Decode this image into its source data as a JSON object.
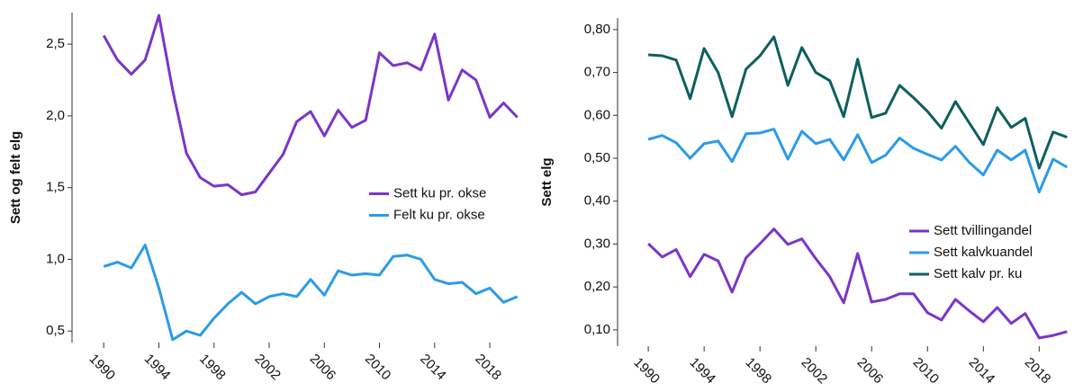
{
  "chart_data": [
    {
      "type": "line",
      "ylabel": "Sett og felt elg",
      "legend": "center right",
      "x": [
        1990,
        1991,
        1992,
        1993,
        1994,
        1995,
        1996,
        1997,
        1998,
        1999,
        2000,
        2001,
        2002,
        2003,
        2004,
        2005,
        2006,
        2007,
        2008,
        2009,
        2010,
        2011,
        2012,
        2013,
        2014,
        2015,
        2016,
        2017,
        2018,
        2019,
        2020
      ],
      "xlim": [
        1987.7,
        2021
      ],
      "xticks": [
        1990,
        1994,
        1998,
        2002,
        2006,
        2010,
        2014,
        2018
      ],
      "ylim": [
        0.42,
        2.72
      ],
      "yticks": [
        {
          "value": 0.5,
          "label": "0,5"
        },
        {
          "value": 1.0,
          "label": "1,0"
        },
        {
          "value": 1.5,
          "label": "1,5"
        },
        {
          "value": 2.0,
          "label": "2,0"
        },
        {
          "value": 2.5,
          "label": "2,5"
        }
      ],
      "series": [
        {
          "name": "Sett ku pr. okse",
          "color": "#7b35c9",
          "values": [
            2.56,
            2.39,
            2.29,
            2.39,
            2.7,
            2.18,
            1.74,
            1.57,
            1.51,
            1.52,
            1.45,
            1.47,
            1.6,
            1.73,
            1.96,
            2.03,
            1.86,
            2.04,
            1.92,
            1.97,
            2.44,
            2.35,
            2.37,
            2.32,
            2.57,
            2.11,
            2.32,
            2.25,
            1.99,
            2.09,
            1.99
          ]
        },
        {
          "name": "Felt ku pr. okse",
          "color": "#2b9be8",
          "values": [
            0.95,
            0.98,
            0.94,
            1.1,
            0.8,
            0.44,
            0.5,
            0.47,
            0.59,
            0.69,
            0.77,
            0.69,
            0.74,
            0.76,
            0.74,
            0.86,
            0.75,
            0.92,
            0.89,
            0.9,
            0.89,
            1.02,
            1.03,
            1.0,
            0.86,
            0.83,
            0.84,
            0.76,
            0.8,
            0.7,
            0.74
          ]
        }
      ]
    },
    {
      "type": "line",
      "ylabel": "Sett elg",
      "legend": "lower right",
      "x": [
        1990,
        1991,
        1992,
        1993,
        1994,
        1995,
        1996,
        1997,
        1998,
        1999,
        2000,
        2001,
        2002,
        2003,
        2004,
        2005,
        2006,
        2007,
        2008,
        2009,
        2010,
        2011,
        2012,
        2013,
        2014,
        2015,
        2016,
        2017,
        2018,
        2019,
        2020
      ],
      "xlim": [
        1987.8,
        2020.3
      ],
      "xticks": [
        1990,
        1994,
        1998,
        2002,
        2006,
        2010,
        2014,
        2018
      ],
      "ylim": [
        0.062,
        0.827
      ],
      "yticks": [
        {
          "value": 0.1,
          "label": "0,10"
        },
        {
          "value": 0.2,
          "label": "0,20"
        },
        {
          "value": 0.3,
          "label": "0,30"
        },
        {
          "value": 0.4,
          "label": "0,40"
        },
        {
          "value": 0.5,
          "label": "0,50"
        },
        {
          "value": 0.6,
          "label": "0,60"
        },
        {
          "value": 0.7,
          "label": "0,70"
        },
        {
          "value": 0.8,
          "label": "0,80"
        }
      ],
      "series": [
        {
          "name": "Sett tvillingandel",
          "color": "#7b35c9",
          "values": [
            0.301,
            0.27,
            0.287,
            0.224,
            0.276,
            0.261,
            0.188,
            0.268,
            0.301,
            0.335,
            0.299,
            0.312,
            0.266,
            0.224,
            0.163,
            0.278,
            0.165,
            0.171,
            0.184,
            0.184,
            0.14,
            0.123,
            0.171,
            0.144,
            0.119,
            0.152,
            0.115,
            0.138,
            0.081,
            0.087,
            0.096
          ]
        },
        {
          "name": "Sett kalvkuandel",
          "color": "#2b9be8",
          "values": [
            0.544,
            0.553,
            0.536,
            0.5,
            0.534,
            0.54,
            0.492,
            0.557,
            0.559,
            0.568,
            0.498,
            0.563,
            0.534,
            0.544,
            0.496,
            0.555,
            0.49,
            0.507,
            0.547,
            0.523,
            0.509,
            0.496,
            0.528,
            0.49,
            0.461,
            0.519,
            0.496,
            0.519,
            0.421,
            0.498,
            0.479
          ]
        },
        {
          "name": "Sett kalv pr. ku",
          "color": "#0e5f5f",
          "values": [
            0.741,
            0.739,
            0.729,
            0.639,
            0.756,
            0.7,
            0.597,
            0.708,
            0.739,
            0.783,
            0.67,
            0.758,
            0.7,
            0.681,
            0.597,
            0.731,
            0.595,
            0.605,
            0.67,
            0.641,
            0.609,
            0.57,
            0.632,
            0.582,
            0.532,
            0.618,
            0.572,
            0.593,
            0.477,
            0.561,
            0.549
          ]
        }
      ]
    }
  ]
}
